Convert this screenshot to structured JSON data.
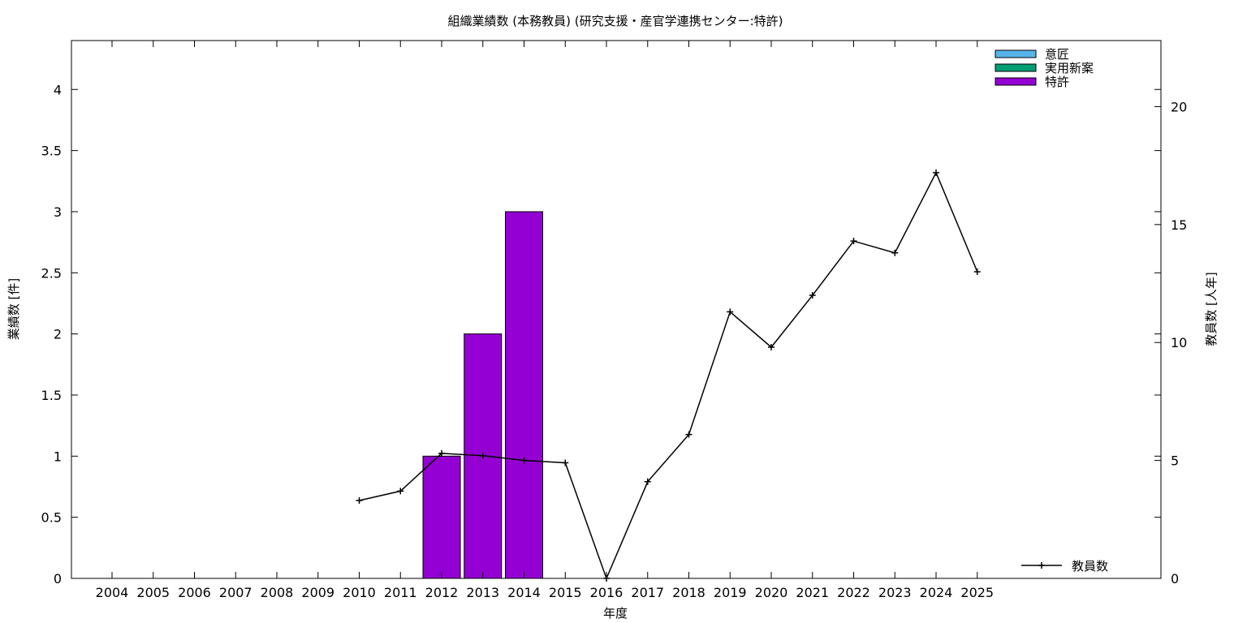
{
  "chart_data": {
    "type": "bar",
    "title": "組織業績数 (本務教員) (研究支援・産官学連携センター:特許)",
    "xlabel": "年度",
    "ylabel": "業績数 [件]",
    "y2label": "教員数 [人年]",
    "categories": [
      "2004",
      "2005",
      "2006",
      "2007",
      "2008",
      "2009",
      "2010",
      "2011",
      "2012",
      "2013",
      "2014",
      "2015",
      "2016",
      "2017",
      "2018",
      "2019",
      "2020",
      "2021",
      "2022",
      "2023",
      "2024",
      "2025"
    ],
    "ylim": [
      0,
      4.4
    ],
    "y2lim": [
      0,
      22.8
    ],
    "yticks": [
      0,
      0.5,
      1,
      1.5,
      2,
      2.5,
      3,
      3.5,
      4
    ],
    "ytick_labels": [
      "0",
      "0.5",
      "1",
      "1.5",
      "2",
      "2.5",
      "3",
      "3.5",
      "4"
    ],
    "y2ticks": [
      0,
      5,
      10,
      15,
      20
    ],
    "y2tick_labels": [
      "0",
      "5",
      "10",
      "15",
      "20"
    ],
    "grid": false,
    "legend_position": "top-right",
    "series": [
      {
        "name": "意匠",
        "type": "bar",
        "color": "#56b4e9",
        "values": [
          0,
          0,
          0,
          0,
          0,
          0,
          0,
          0,
          0,
          0,
          0,
          0,
          0,
          0,
          0,
          0,
          0,
          0,
          0,
          0,
          0,
          0
        ]
      },
      {
        "name": "実用新案",
        "type": "bar",
        "color": "#009e73",
        "values": [
          0,
          0,
          0,
          0,
          0,
          0,
          0,
          0,
          0,
          0,
          0,
          0,
          0,
          0,
          0,
          0,
          0,
          0,
          0,
          0,
          0,
          0
        ]
      },
      {
        "name": "特許",
        "type": "bar",
        "color": "#9400d3",
        "values": [
          0,
          0,
          0,
          0,
          0,
          0,
          0,
          0,
          1,
          2,
          3,
          0,
          0,
          0,
          0,
          0,
          0,
          0,
          0,
          0,
          0,
          0
        ]
      },
      {
        "name": "教員数",
        "type": "line",
        "axis": "y2",
        "color": "#000000",
        "values": [
          null,
          null,
          null,
          null,
          null,
          null,
          3.3,
          3.7,
          5.3,
          5.2,
          5.0,
          4.9,
          0,
          4.1,
          6.1,
          11.3,
          9.8,
          12.0,
          14.3,
          13.8,
          17.2,
          13.0
        ]
      }
    ]
  }
}
